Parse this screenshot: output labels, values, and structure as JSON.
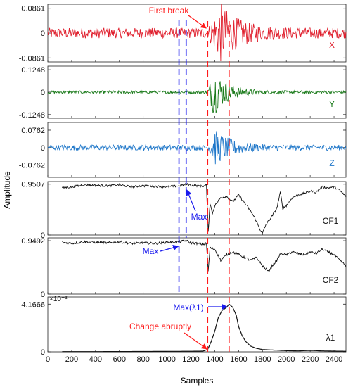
{
  "colors": {
    "x": "#e0202e",
    "y": "#1a7a1a",
    "z": "#1f77c9",
    "black": "#111111",
    "red_marker": "#ff1a1a",
    "blue_marker": "#1a1aee"
  },
  "chart_data": {
    "type": "line",
    "xlabel": "Samples",
    "ylabel": "Amplitude",
    "xlim": [
      0,
      2500
    ],
    "xticks": [
      "0",
      "200",
      "400",
      "600",
      "800",
      "1000",
      "1200",
      "1400",
      "1600",
      "1800",
      "2000",
      "2200",
      "2400"
    ],
    "vertical_markers": {
      "red_dashed": [
        1340,
        1520
      ],
      "blue_dashed": [
        1100,
        1160
      ]
    },
    "panels": [
      {
        "id": "x",
        "name": "X",
        "ylim": [
          -0.1,
          0.1
        ],
        "ytick_labels": [
          "0.0861",
          "0",
          "-0.0861"
        ],
        "ytick_values": [
          0.0861,
          0,
          -0.0861
        ],
        "signal": {
          "kind": "noise_burst",
          "noise": 0.018,
          "onset": 1340,
          "peak": 1450,
          "amp": 0.0861,
          "decay": 160,
          "start": 0,
          "end": 2500
        },
        "annotations": [
          {
            "text": "First break"
          }
        ]
      },
      {
        "id": "y",
        "name": "Y",
        "ylim": [
          -0.145,
          0.145
        ],
        "ytick_labels": [
          "0.1248",
          "0",
          "-0.1248"
        ],
        "ytick_values": [
          0.1248,
          0,
          -0.1248
        ],
        "signal": {
          "kind": "noise_burst",
          "noise": 0.008,
          "onset": 1340,
          "peak": 1390,
          "amp": 0.1248,
          "decay": 120,
          "start": 0,
          "end": 2500
        },
        "annotations": []
      },
      {
        "id": "z",
        "name": "Z",
        "ylim": [
          -0.13,
          0.11
        ],
        "ytick_labels": [
          "0.0762",
          "0",
          "-0.0762"
        ],
        "ytick_values": [
          0.0762,
          0,
          -0.0762
        ],
        "signal": {
          "kind": "noise_burst",
          "noise": 0.012,
          "onset": 1340,
          "peak": 1400,
          "amp": 0.07,
          "decay": 140,
          "start": 0,
          "end": 2500
        },
        "annotations": []
      },
      {
        "id": "cf1",
        "name": "CF1",
        "ylim": [
          0,
          1.0
        ],
        "ytick_labels": [
          "0.9507",
          "0"
        ],
        "ytick_values": [
          0.9507,
          0
        ],
        "signal": {
          "kind": "curve",
          "start": 120,
          "end": 2500,
          "points": [
            [
              120,
              0.88
            ],
            [
              200,
              0.9
            ],
            [
              300,
              0.94
            ],
            [
              400,
              0.93
            ],
            [
              500,
              0.92
            ],
            [
              600,
              0.94
            ],
            [
              700,
              0.9
            ],
            [
              800,
              0.92
            ],
            [
              900,
              0.91
            ],
            [
              1000,
              0.9
            ],
            [
              1100,
              0.92
            ],
            [
              1160,
              0.9507
            ],
            [
              1200,
              0.93
            ],
            [
              1260,
              0.92
            ],
            [
              1300,
              0.91
            ],
            [
              1330,
              0.93
            ],
            [
              1345,
              0.05
            ],
            [
              1360,
              0.6
            ],
            [
              1380,
              0.4
            ],
            [
              1400,
              0.55
            ],
            [
              1450,
              0.7
            ],
            [
              1500,
              0.72
            ],
            [
              1550,
              0.62
            ],
            [
              1600,
              0.75
            ],
            [
              1650,
              0.6
            ],
            [
              1700,
              0.45
            ],
            [
              1740,
              0.3
            ],
            [
              1780,
              0.1
            ],
            [
              1800,
              0.03
            ],
            [
              1830,
              0.2
            ],
            [
              1880,
              0.35
            ],
            [
              1920,
              0.5
            ],
            [
              1950,
              0.8
            ],
            [
              1970,
              0.5
            ],
            [
              2000,
              0.55
            ],
            [
              2050,
              0.7
            ],
            [
              2100,
              0.75
            ],
            [
              2150,
              0.78
            ],
            [
              2200,
              0.82
            ],
            [
              2250,
              0.8
            ],
            [
              2300,
              0.9
            ],
            [
              2350,
              0.88
            ],
            [
              2400,
              0.9
            ],
            [
              2450,
              0.83
            ],
            [
              2500,
              0.72
            ]
          ]
        },
        "annotations": [
          {
            "text": "Max"
          }
        ]
      },
      {
        "id": "cf2",
        "name": "CF2",
        "ylim": [
          0,
          1.0
        ],
        "ytick_labels": [
          "0.9492",
          "0"
        ],
        "ytick_values": [
          0.9492,
          0
        ],
        "signal": {
          "kind": "curve",
          "start": 120,
          "end": 2500,
          "points": [
            [
              120,
              0.92
            ],
            [
              200,
              0.9
            ],
            [
              300,
              0.93
            ],
            [
              400,
              0.92
            ],
            [
              500,
              0.91
            ],
            [
              600,
              0.93
            ],
            [
              700,
              0.9
            ],
            [
              800,
              0.91
            ],
            [
              900,
              0.9
            ],
            [
              1000,
              0.92
            ],
            [
              1100,
              0.93
            ],
            [
              1160,
              0.9492
            ],
            [
              1200,
              0.91
            ],
            [
              1260,
              0.9
            ],
            [
              1300,
              0.88
            ],
            [
              1330,
              0.9
            ],
            [
              1345,
              0.4
            ],
            [
              1360,
              0.82
            ],
            [
              1400,
              0.8
            ],
            [
              1450,
              0.6
            ],
            [
              1500,
              0.7
            ],
            [
              1550,
              0.75
            ],
            [
              1600,
              0.7
            ],
            [
              1650,
              0.65
            ],
            [
              1700,
              0.6
            ],
            [
              1750,
              0.65
            ],
            [
              1800,
              0.5
            ],
            [
              1850,
              0.4
            ],
            [
              1880,
              0.5
            ],
            [
              1920,
              0.6
            ],
            [
              1950,
              0.72
            ],
            [
              2000,
              0.7
            ],
            [
              2050,
              0.75
            ],
            [
              2100,
              0.72
            ],
            [
              2150,
              0.7
            ],
            [
              2200,
              0.75
            ],
            [
              2250,
              0.72
            ],
            [
              2300,
              0.8
            ],
            [
              2350,
              0.75
            ],
            [
              2400,
              0.7
            ],
            [
              2450,
              0.6
            ],
            [
              2500,
              0.5
            ]
          ]
        },
        "annotations": [
          {
            "text": "Max"
          }
        ],
        "exponent_label": "×10⁻³"
      },
      {
        "id": "l1",
        "name": "λ1",
        "ylim": [
          0,
          4.8
        ],
        "ytick_labels": [
          "4.1666",
          "0"
        ],
        "ytick_values": [
          4.1666,
          0
        ],
        "signal": {
          "kind": "curve",
          "start": 120,
          "end": 2500,
          "points": [
            [
              120,
              0.02
            ],
            [
              400,
              0.02
            ],
            [
              800,
              0.03
            ],
            [
              1000,
              0.04
            ],
            [
              1200,
              0.05
            ],
            [
              1300,
              0.06
            ],
            [
              1340,
              0.2
            ],
            [
              1370,
              0.9
            ],
            [
              1400,
              1.8
            ],
            [
              1430,
              3.0
            ],
            [
              1460,
              3.6
            ],
            [
              1500,
              3.9
            ],
            [
              1520,
              4.1666
            ],
            [
              1550,
              3.9
            ],
            [
              1580,
              3.2
            ],
            [
              1600,
              2.2
            ],
            [
              1630,
              1.4
            ],
            [
              1660,
              0.9
            ],
            [
              1700,
              0.5
            ],
            [
              1750,
              0.3
            ],
            [
              1800,
              0.2
            ],
            [
              1900,
              0.15
            ],
            [
              2000,
              0.1
            ],
            [
              2100,
              0.08
            ],
            [
              2200,
              0.12
            ],
            [
              2300,
              0.08
            ],
            [
              2400,
              0.06
            ],
            [
              2500,
              0.05
            ]
          ]
        },
        "annotations": [
          {
            "text": "Max(λ1)"
          },
          {
            "text": "Change abruptly"
          }
        ]
      }
    ]
  }
}
